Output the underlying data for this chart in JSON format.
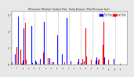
{
  "title": "Milwaukee Weather Outdoor Rain  Daily Amount  (Past/Previous Year)",
  "background_color": "#e8e8e8",
  "plot_bg_color": "#ffffff",
  "bar_width": 0.4,
  "legend_labels": [
    "This Year",
    "Last Year"
  ],
  "legend_colors": [
    "#0000ff",
    "#ff0000"
  ],
  "n_points": 120,
  "seed": 42,
  "blue_scale": 1.0,
  "red_scale": 0.85,
  "ylim_max": 3.2
}
